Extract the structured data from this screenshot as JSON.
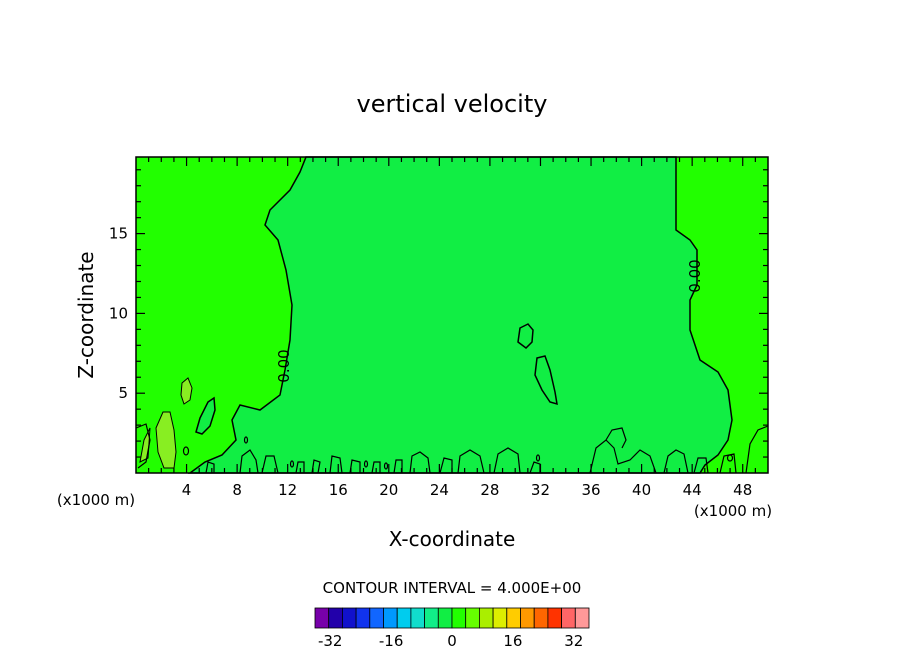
{
  "chart_data": {
    "type": "contour",
    "title": "vertical velocity",
    "xlabel": "X-coordinate",
    "ylabel": "Z-coordinate",
    "x_unit_label": "(x1000 m)",
    "xlim": [
      0,
      50
    ],
    "ylim": [
      0,
      19.8
    ],
    "x_ticks": [
      4,
      8,
      12,
      16,
      20,
      24,
      28,
      32,
      36,
      40,
      44,
      48
    ],
    "y_ticks": [
      5,
      10,
      15
    ],
    "contour_interval_label": "CONTOUR INTERVAL = 4.000E+00",
    "contour_labels": [
      "0.00",
      "0.00"
    ],
    "fill_colors": {
      "background_slightly_positive": "#22ff00",
      "central_near_zero_negative": "#11ee44",
      "weak_positive_patch": "#88ee22"
    },
    "colorbar": {
      "min": -36,
      "max": 36,
      "interval": 4,
      "tick_labels": [
        "-32",
        "-16",
        "0",
        "16",
        "32"
      ],
      "tick_values": [
        -32,
        -16,
        0,
        16,
        32
      ],
      "colors": [
        "#7700aa",
        "#2200aa",
        "#1111cc",
        "#1133ee",
        "#1166ff",
        "#0099ff",
        "#00ccee",
        "#11ddcc",
        "#11ee88",
        "#11ee44",
        "#22ff00",
        "#66ff00",
        "#aaee00",
        "#ddee00",
        "#ffcc00",
        "#ff9900",
        "#ff6600",
        "#ff3300",
        "#ff6666",
        "#ff9999"
      ]
    }
  }
}
